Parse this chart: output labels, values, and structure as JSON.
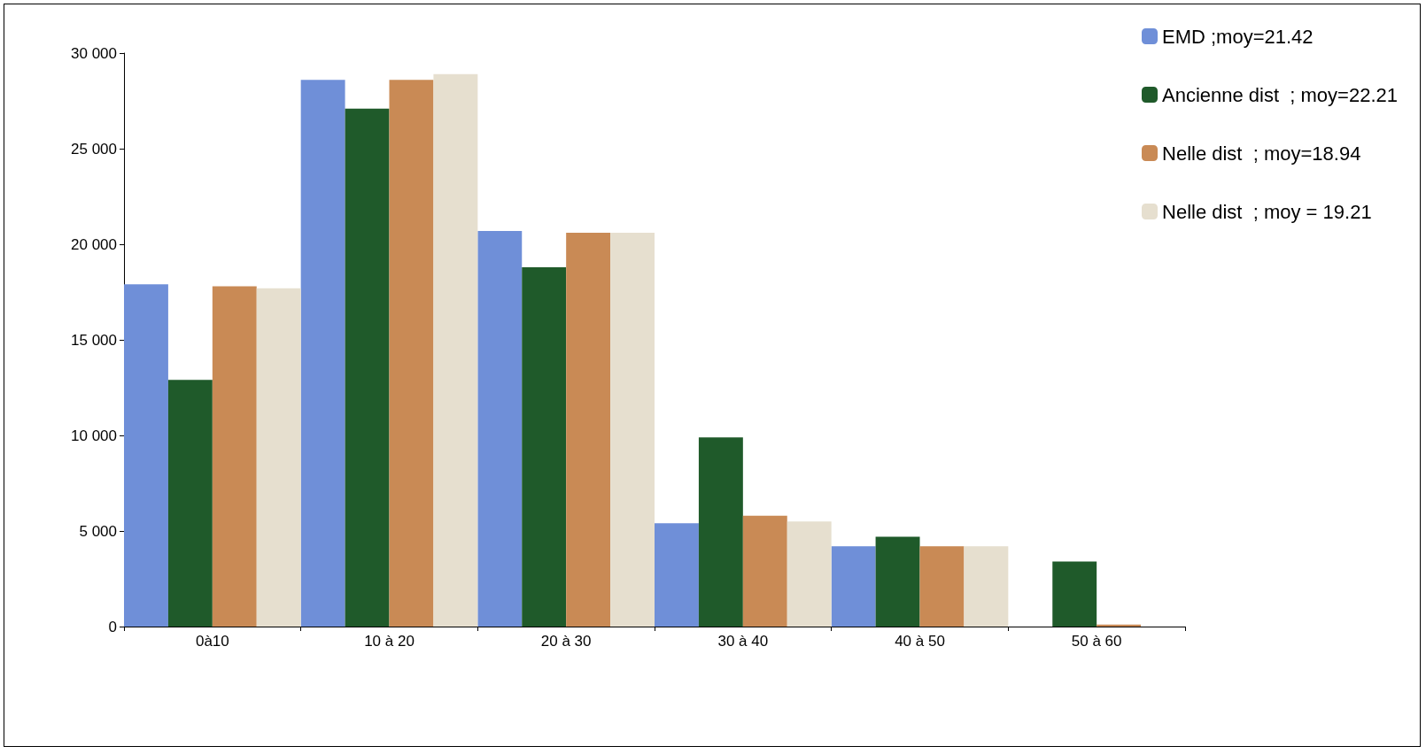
{
  "chart_data": {
    "type": "bar",
    "categories": [
      "0à10",
      "10 à 20",
      "20 à 30",
      "30 à 40",
      "40 à 50",
      "50 à 60"
    ],
    "series": [
      {
        "name": "EMD ;moy=21.42",
        "color": "#6f8fd8",
        "values": [
          17900,
          28600,
          20700,
          5400,
          4200,
          null
        ]
      },
      {
        "name": "Ancienne dist  ; moy=22.21",
        "color": "#1f5a2a",
        "values": [
          12900,
          27100,
          18800,
          9900,
          4700,
          3400
        ]
      },
      {
        "name": "Nelle dist  ; moy=18.94",
        "color": "#c98a55",
        "values": [
          17800,
          28600,
          20600,
          5800,
          4200,
          100
        ]
      },
      {
        "name": "Nelle dist  ; moy = 19.21",
        "color": "#e6dfcf",
        "values": [
          17700,
          28900,
          20600,
          5500,
          4200,
          null
        ]
      }
    ],
    "ylim": [
      0,
      30000
    ],
    "yticks": [
      {
        "value": 0,
        "label": "0"
      },
      {
        "value": 5000,
        "label": "5 000"
      },
      {
        "value": 10000,
        "label": "10 000"
      },
      {
        "value": 15000,
        "label": "15 000"
      },
      {
        "value": 20000,
        "label": "20 000"
      },
      {
        "value": 25000,
        "label": "25 000"
      },
      {
        "value": 30000,
        "label": "30 000"
      }
    ],
    "grid": false,
    "legend": "top right"
  }
}
